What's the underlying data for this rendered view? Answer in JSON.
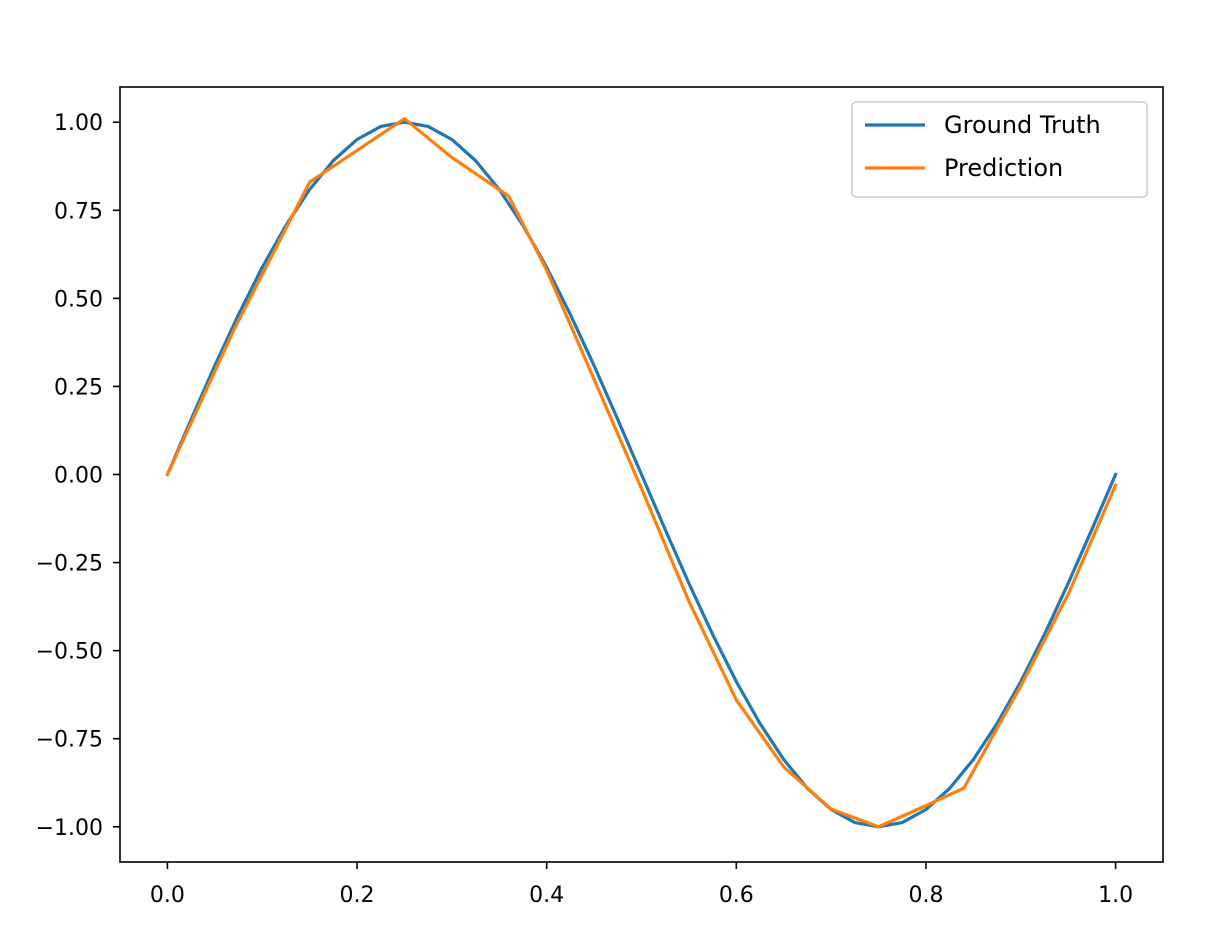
{
  "chart_data": {
    "type": "line",
    "title": "",
    "xlabel": "",
    "ylabel": "",
    "xlim": [
      -0.05,
      1.05
    ],
    "ylim": [
      -1.1,
      1.1
    ],
    "xticks": [
      0.0,
      0.2,
      0.4,
      0.6,
      0.8,
      1.0
    ],
    "xtick_labels": [
      "0.0",
      "0.2",
      "0.4",
      "0.6",
      "0.8",
      "1.0"
    ],
    "yticks": [
      1.0,
      0.75,
      0.5,
      0.25,
      0.0,
      -0.25,
      -0.5,
      -0.75,
      -1.0
    ],
    "ytick_labels": [
      "1.00",
      "0.75",
      "0.50",
      "0.25",
      "0.00",
      "−0.25",
      "−0.50",
      "−0.75",
      "−1.00"
    ],
    "grid": false,
    "legend_position": "top-right",
    "series": [
      {
        "name": "Ground Truth",
        "color": "#1f77b4",
        "x": [
          0.0,
          0.025,
          0.05,
          0.075,
          0.1,
          0.125,
          0.15,
          0.175,
          0.2,
          0.225,
          0.25,
          0.275,
          0.3,
          0.325,
          0.35,
          0.375,
          0.4,
          0.425,
          0.45,
          0.475,
          0.5,
          0.525,
          0.55,
          0.575,
          0.6,
          0.625,
          0.65,
          0.675,
          0.7,
          0.725,
          0.75,
          0.775,
          0.8,
          0.825,
          0.85,
          0.875,
          0.9,
          0.925,
          0.95,
          0.975,
          1.0
        ],
        "y": [
          0.0,
          0.156,
          0.309,
          0.454,
          0.588,
          0.707,
          0.809,
          0.891,
          0.951,
          0.988,
          1.0,
          0.988,
          0.951,
          0.891,
          0.809,
          0.707,
          0.588,
          0.454,
          0.309,
          0.156,
          0.0,
          -0.156,
          -0.309,
          -0.454,
          -0.588,
          -0.707,
          -0.809,
          -0.891,
          -0.951,
          -0.988,
          -1.0,
          -0.988,
          -0.951,
          -0.891,
          -0.809,
          -0.707,
          -0.588,
          -0.454,
          -0.309,
          -0.156,
          0.0
        ]
      },
      {
        "name": "Prediction",
        "color": "#ff7f0e",
        "x": [
          0.0,
          0.07,
          0.15,
          0.2,
          0.25,
          0.3,
          0.36,
          0.4,
          0.45,
          0.5,
          0.55,
          0.6,
          0.65,
          0.7,
          0.75,
          0.8,
          0.84,
          0.9,
          0.95,
          1.0
        ],
        "y": [
          0.0,
          0.41,
          0.83,
          0.92,
          1.01,
          0.9,
          0.79,
          0.58,
          0.27,
          -0.04,
          -0.36,
          -0.64,
          -0.83,
          -0.95,
          -1.0,
          -0.94,
          -0.89,
          -0.6,
          -0.34,
          -0.03
        ]
      }
    ]
  }
}
